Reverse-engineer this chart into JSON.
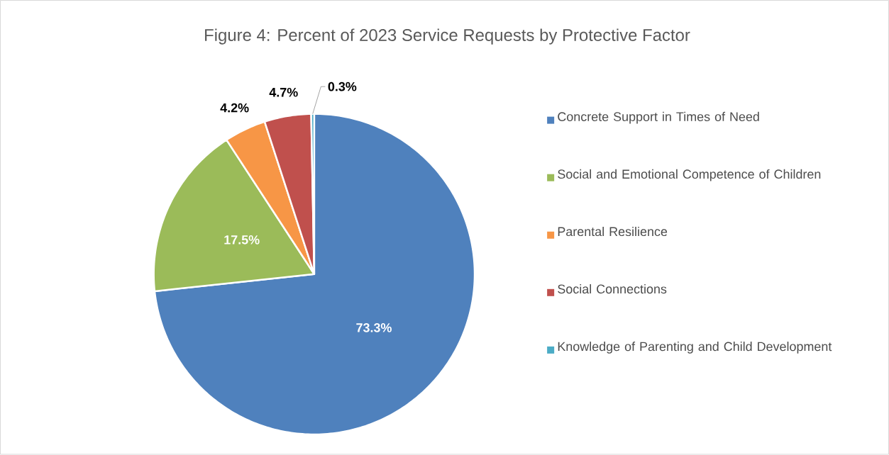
{
  "chart_data": {
    "type": "pie",
    "title": "Figure 4: Percent of 2023 Service Requests by Protective Factor",
    "categories": [
      "Concrete Support in Times of Need",
      "Social and Emotional Competence of Children",
      "Parental Resilience",
      "Social Connections",
      "Knowledge of Parenting and Child Development"
    ],
    "values": [
      73.3,
      17.5,
      4.2,
      4.7,
      0.3
    ],
    "colors": [
      "#4f81bd",
      "#9bbb59",
      "#f79646",
      "#c0504d",
      "#4bacc6"
    ],
    "value_labels": [
      "73.3%",
      "17.5%",
      "4.2%",
      "4.7%",
      "0.3%"
    ],
    "legend": "right"
  }
}
